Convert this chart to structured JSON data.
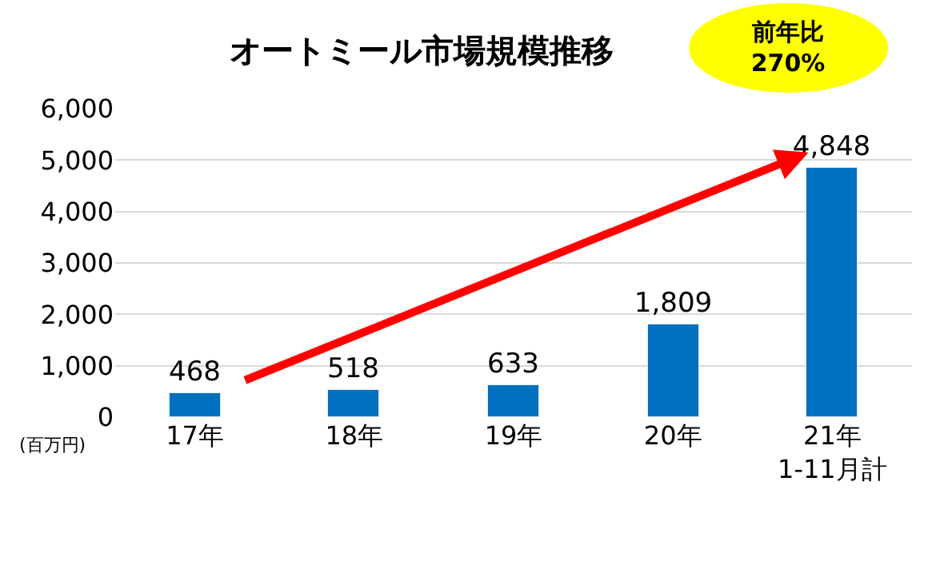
{
  "chart_data": {
    "type": "bar",
    "title": "オートミール市場規模推移",
    "categories": [
      "17年",
      "18年",
      "19年",
      "20年",
      "21年\n1-11月計"
    ],
    "series": [
      {
        "color": "#0070c0",
        "values": [
          468,
          518,
          633,
          1809,
          4848
        ],
        "value_labels": [
          "468",
          "518",
          "633",
          "1,809",
          "4,848"
        ]
      }
    ],
    "ylim": [
      0,
      6000
    ],
    "yticks": [
      {
        "value": 0,
        "label": "0"
      },
      {
        "value": 1000,
        "label": "1,000"
      },
      {
        "value": 2000,
        "label": "2,000"
      },
      {
        "value": 3000,
        "label": "3,000"
      },
      {
        "value": 4000,
        "label": "4,000"
      },
      {
        "value": 5000,
        "label": "5,000"
      },
      {
        "value": 6000,
        "label": "6,000"
      }
    ],
    "grid": "y",
    "legend": false,
    "annotations": [
      "前年比\n270%",
      "(百万円)"
    ]
  }
}
